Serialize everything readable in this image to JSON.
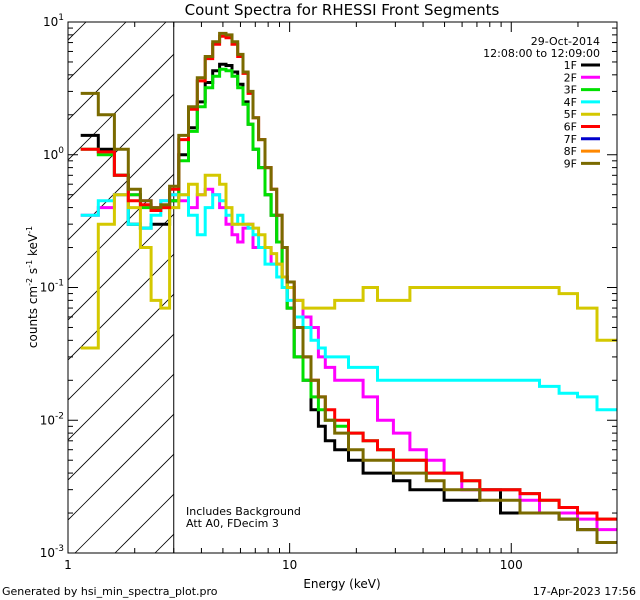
{
  "chart_data": {
    "type": "line",
    "title": "Count Spectra for RHESSI Front Segments",
    "xlabel": "Energy (keV)",
    "ylabel": "counts cm^-2 s^-1 keV^-1",
    "xscale": "log",
    "yscale": "log",
    "xlim": [
      1.0,
      300.0
    ],
    "ylim": [
      0.001,
      10.0
    ],
    "x_ticks": [
      {
        "value": 1,
        "label": "1"
      },
      {
        "value": 10,
        "label": "10"
      },
      {
        "value": 100,
        "label": "100"
      }
    ],
    "y_ticks": [
      {
        "value": 0.001,
        "base": "10",
        "exp": "-3"
      },
      {
        "value": 0.01,
        "base": "10",
        "exp": "-2"
      },
      {
        "value": 0.1,
        "base": "10",
        "exp": "-1"
      },
      {
        "value": 1,
        "base": "10",
        "exp": "0"
      },
      {
        "value": 10,
        "base": "10",
        "exp": "1"
      }
    ],
    "date": "29-Oct-2014",
    "time_range": "12:08:00 to 12:09:00",
    "annotations": [
      "Includes Background",
      "Att A0, FDecim 3"
    ],
    "shaded_region": {
      "xmin": 1.0,
      "xmax": 3.0
    },
    "x_bins": [
      1.25,
      1.5,
      1.75,
      2.0,
      2.25,
      2.5,
      2.75,
      3.0,
      3.33,
      3.67,
      4.0,
      4.33,
      4.67,
      5.0,
      5.33,
      5.67,
      6.0,
      6.33,
      6.67,
      7.0,
      7.5,
      8.0,
      8.5,
      9.0,
      9.5,
      10.0,
      11.0,
      12.0,
      13.0,
      14.0,
      15.0,
      17.0,
      20.0,
      23.0,
      27.0,
      32.0,
      38.0,
      45.0,
      55.0,
      65.0,
      80.0,
      100.0,
      120.0,
      150.0,
      180.0,
      220.0,
      270.0
    ],
    "series": [
      {
        "name": "1F",
        "color": "#000000",
        "values": [
          1.4,
          1.1,
          0.7,
          0.3,
          0.28,
          0.3,
          0.3,
          0.45,
          1.0,
          1.6,
          2.5,
          3.5,
          4.3,
          4.8,
          4.7,
          4.2,
          3.4,
          2.5,
          1.7,
          1.1,
          0.8,
          0.5,
          0.35,
          0.22,
          0.12,
          0.07,
          0.03,
          0.02,
          0.012,
          0.009,
          0.007,
          0.006,
          0.005,
          0.004,
          0.004,
          0.0035,
          0.003,
          0.003,
          0.0025,
          0.0025,
          0.003,
          0.002,
          0.002,
          0.002,
          0.0018,
          0.0015,
          0.0012
        ]
      },
      {
        "name": "2F",
        "color": "#ff00ff",
        "values": [
          0.35,
          0.4,
          0.5,
          0.5,
          0.45,
          0.4,
          0.45,
          0.5,
          0.45,
          0.4,
          0.5,
          0.55,
          0.5,
          0.4,
          0.3,
          0.25,
          0.22,
          0.28,
          0.3,
          0.2,
          0.2,
          0.2,
          0.15,
          0.15,
          0.12,
          0.1,
          0.08,
          0.06,
          0.05,
          0.03,
          0.025,
          0.02,
          0.02,
          0.015,
          0.01,
          0.008,
          0.006,
          0.005,
          0.004,
          0.003,
          0.003,
          0.003,
          0.0025,
          0.002,
          0.002,
          0.0018,
          0.0015
        ]
      },
      {
        "name": "3F",
        "color": "#00e000",
        "values": [
          1.1,
          1.0,
          0.7,
          0.5,
          0.4,
          0.38,
          0.4,
          0.45,
          0.9,
          1.5,
          2.3,
          3.2,
          3.9,
          4.4,
          4.3,
          3.9,
          3.2,
          2.4,
          1.7,
          1.1,
          0.8,
          0.5,
          0.35,
          0.22,
          0.12,
          0.07,
          0.03,
          0.02,
          0.015,
          0.012,
          0.01,
          0.009,
          0.008,
          0.007,
          0.006,
          0.005,
          0.005,
          0.004,
          0.004,
          0.0035,
          0.003,
          0.003,
          0.0028,
          0.0025,
          0.0022,
          0.002,
          0.0018
        ]
      },
      {
        "name": "4F",
        "color": "#00ffff",
        "values": [
          0.35,
          0.45,
          0.5,
          0.3,
          0.28,
          0.35,
          0.45,
          0.5,
          0.5,
          0.35,
          0.25,
          0.4,
          0.5,
          0.45,
          0.35,
          0.3,
          0.35,
          0.3,
          0.28,
          0.25,
          0.2,
          0.15,
          0.15,
          0.12,
          0.1,
          0.08,
          0.06,
          0.05,
          0.04,
          0.035,
          0.03,
          0.03,
          0.025,
          0.025,
          0.02,
          0.02,
          0.02,
          0.02,
          0.02,
          0.02,
          0.02,
          0.02,
          0.02,
          0.018,
          0.016,
          0.015,
          0.012
        ]
      },
      {
        "name": "5F",
        "color": "#d4c800",
        "values": [
          0.035,
          0.3,
          0.5,
          0.4,
          0.2,
          0.08,
          0.07,
          0.4,
          0.5,
          0.6,
          0.5,
          0.7,
          0.7,
          0.6,
          0.4,
          0.3,
          0.3,
          0.3,
          0.3,
          0.28,
          0.25,
          0.2,
          0.18,
          0.15,
          0.12,
          0.1,
          0.08,
          0.07,
          0.07,
          0.07,
          0.07,
          0.08,
          0.08,
          0.1,
          0.08,
          0.08,
          0.1,
          0.1,
          0.1,
          0.1,
          0.1,
          0.1,
          0.1,
          0.1,
          0.09,
          0.07,
          0.04
        ]
      },
      {
        "name": "6F",
        "color": "#ff0000",
        "values": [
          1.1,
          1.05,
          0.7,
          0.45,
          0.42,
          0.38,
          0.4,
          0.55,
          1.3,
          2.2,
          3.6,
          5.3,
          6.8,
          7.8,
          7.6,
          6.8,
          5.5,
          4.1,
          2.9,
          1.9,
          1.3,
          0.8,
          0.55,
          0.35,
          0.2,
          0.11,
          0.05,
          0.03,
          0.02,
          0.015,
          0.012,
          0.01,
          0.008,
          0.007,
          0.006,
          0.005,
          0.005,
          0.004,
          0.004,
          0.0035,
          0.003,
          0.003,
          0.0028,
          0.0025,
          0.0022,
          0.002,
          0.0018
        ]
      },
      {
        "name": "7F",
        "color": "#0000cc",
        "values": []
      },
      {
        "name": "8F",
        "color": "#ff8800",
        "values": []
      },
      {
        "name": "9F",
        "color": "#7a6a00",
        "values": [
          2.9,
          2.0,
          1.1,
          0.55,
          0.45,
          0.4,
          0.42,
          0.58,
          1.4,
          2.3,
          3.8,
          5.5,
          7.1,
          8.2,
          8.0,
          7.1,
          5.7,
          4.2,
          3.0,
          1.9,
          1.3,
          0.8,
          0.55,
          0.35,
          0.2,
          0.11,
          0.05,
          0.03,
          0.02,
          0.015,
          0.01,
          0.008,
          0.006,
          0.005,
          0.005,
          0.004,
          0.004,
          0.0035,
          0.003,
          0.003,
          0.0025,
          0.0025,
          0.002,
          0.002,
          0.0018,
          0.0015,
          0.0012
        ]
      }
    ]
  },
  "footer": {
    "generated_by": "Generated by hsi_min_spectra_plot.pro",
    "timestamp": "17-Apr-2023 17:56"
  }
}
